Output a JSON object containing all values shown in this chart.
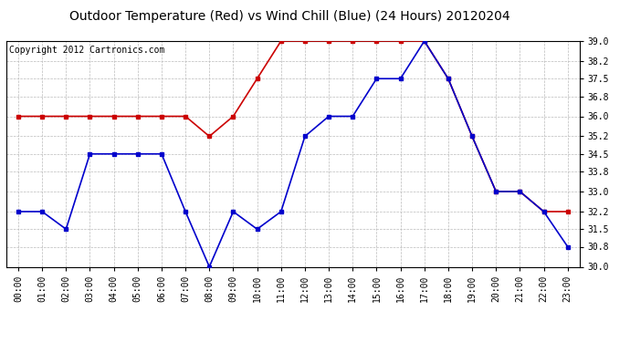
{
  "title": "Outdoor Temperature (Red) vs Wind Chill (Blue) (24 Hours) 20120204",
  "copyright": "Copyright 2012 Cartronics.com",
  "x_labels": [
    "00:00",
    "01:00",
    "02:00",
    "03:00",
    "04:00",
    "05:00",
    "06:00",
    "07:00",
    "08:00",
    "09:00",
    "10:00",
    "11:00",
    "12:00",
    "13:00",
    "14:00",
    "15:00",
    "16:00",
    "17:00",
    "18:00",
    "19:00",
    "20:00",
    "21:00",
    "22:00",
    "23:00"
  ],
  "red_data": [
    36.0,
    36.0,
    36.0,
    36.0,
    36.0,
    36.0,
    36.0,
    36.0,
    35.2,
    36.0,
    37.5,
    39.0,
    39.0,
    39.0,
    39.0,
    39.0,
    39.0,
    39.0,
    37.5,
    35.2,
    33.0,
    33.0,
    32.2,
    32.2
  ],
  "blue_data": [
    32.2,
    32.2,
    31.5,
    34.5,
    34.5,
    34.5,
    34.5,
    32.2,
    30.0,
    32.2,
    31.5,
    32.2,
    35.2,
    36.0,
    36.0,
    37.5,
    37.5,
    39.0,
    37.5,
    35.2,
    33.0,
    33.0,
    32.2,
    30.8
  ],
  "ylim": [
    30.0,
    39.0
  ],
  "yticks": [
    30.0,
    30.8,
    31.5,
    32.2,
    33.0,
    33.8,
    34.5,
    35.2,
    36.0,
    36.8,
    37.5,
    38.2,
    39.0
  ],
  "red_color": "#cc0000",
  "blue_color": "#0000cc",
  "bg_color": "#ffffff",
  "grid_color": "#bbbbbb",
  "title_fontsize": 10,
  "copyright_fontsize": 7,
  "tick_fontsize": 7,
  "marker_size": 3,
  "line_width": 1.2
}
